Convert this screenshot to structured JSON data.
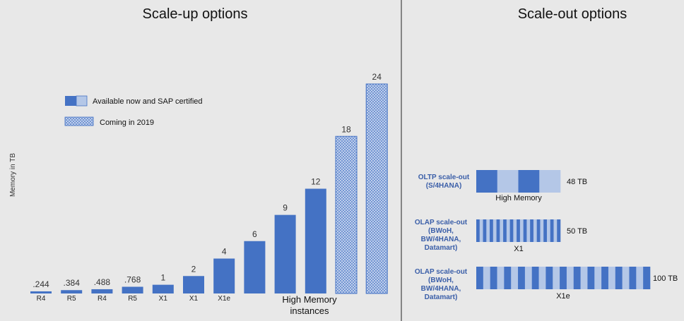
{
  "colors": {
    "solid": "#4472c4",
    "light": "#b4c7e7",
    "hatch_stroke": "#4472c4",
    "hatch_fill": "#c9d6ef",
    "divider": "#222222",
    "background": "#e8e8e8"
  },
  "titles": {
    "scale_up": "Scale-up options",
    "scale_out": "Scale-out options"
  },
  "legend": {
    "available": "Available now and SAP certified",
    "coming": "Coming in 2019"
  },
  "chart_data": {
    "type": "bar",
    "title": "Scale-up options",
    "ylabel": "Memory in TB",
    "xlabel": "High Memory instances",
    "categories": [
      "R4",
      "R5",
      "R4",
      "R5",
      "X1",
      "X1",
      "X1e",
      "",
      "",
      "",
      "",
      ""
    ],
    "value_labels": [
      ".244",
      ".384",
      ".488",
      ".768",
      "1",
      "2",
      "4",
      "6",
      "9",
      "12",
      "18",
      "24"
    ],
    "values": [
      0.244,
      0.384,
      0.488,
      0.768,
      1,
      2,
      4,
      6,
      9,
      12,
      18,
      24
    ],
    "status": [
      "available",
      "available",
      "available",
      "available",
      "available",
      "available",
      "available",
      "available",
      "available",
      "available",
      "coming",
      "coming"
    ],
    "ylim": [
      0,
      25
    ],
    "grid": false,
    "legend_position": "top-left"
  },
  "scale_out": {
    "rows": [
      {
        "label": [
          "OLTP scale-out",
          "(S/4HANA)"
        ],
        "value": "48 TB",
        "sublabel": "High Memory",
        "segments": 4
      },
      {
        "label": [
          "OLAP scale-out",
          "(BWoH,",
          "BW/4HANA,",
          "Datamart)"
        ],
        "value": "50 TB",
        "sublabel": "X1",
        "segments": 25
      },
      {
        "label": [
          "OLAP scale-out",
          "(BWoH,",
          "BW/4HANA,",
          "Datamart)"
        ],
        "value": "100 TB",
        "sublabel": "X1e",
        "segments": 25
      }
    ]
  }
}
